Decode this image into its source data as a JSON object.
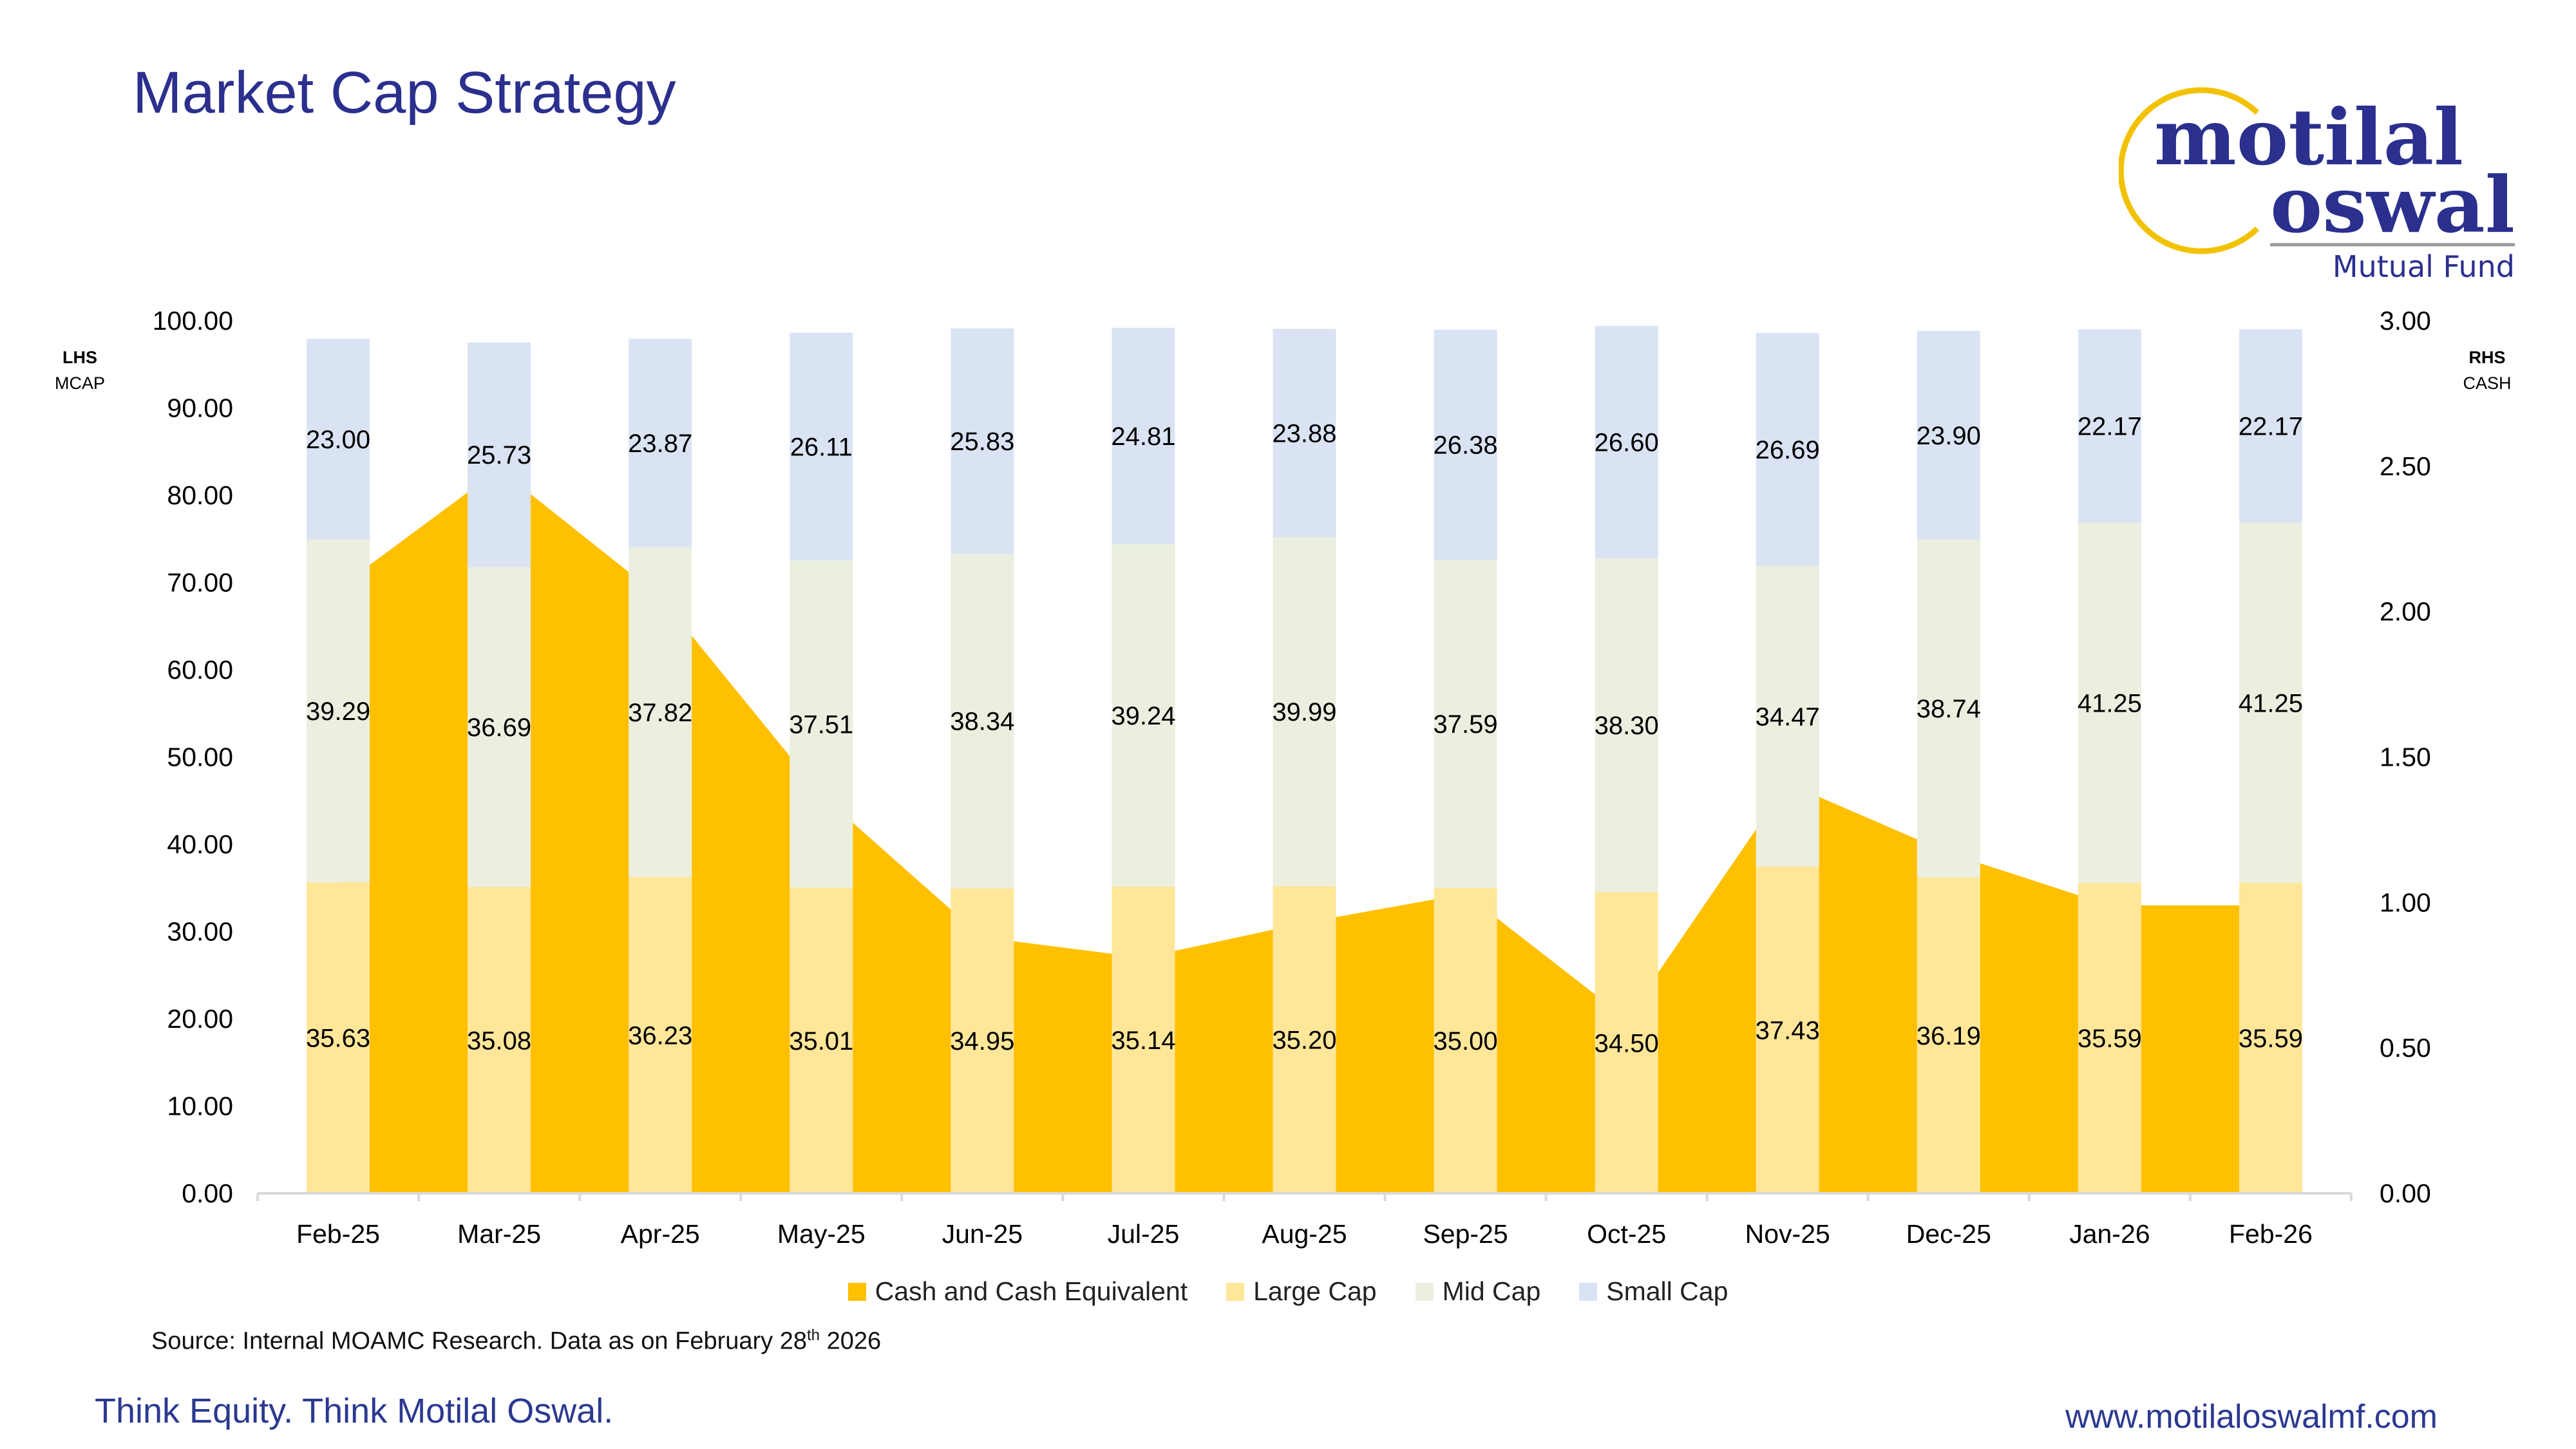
{
  "title": "Market Cap Strategy",
  "logo": {
    "line1": "motilal",
    "line2": "oswal",
    "line3": "Mutual Fund"
  },
  "left_axis": {
    "title": "LHS",
    "subtitle": "MCAP"
  },
  "right_axis": {
    "title": "RHS",
    "subtitle": "CASH"
  },
  "source": {
    "text": "Source: Internal MOAMC Research.  Data as on February 28",
    "sup": "th",
    "tail": "  2026"
  },
  "footer": {
    "tagline": "Think Equity. Think Motilal Oswal.",
    "url": "www.motilaloswalmf.com"
  },
  "chart_data": {
    "type": "bar",
    "stacked": true,
    "categories": [
      "Feb-25",
      "Mar-25",
      "Apr-25",
      "May-25",
      "Jun-25",
      "Jul-25",
      "Aug-25",
      "Sep-25",
      "Oct-25",
      "Nov-25",
      "Dec-25",
      "Jan-26",
      "Feb-26"
    ],
    "y_left": {
      "range": [
        0,
        100
      ],
      "ticks": [
        "0.00",
        "10.00",
        "20.00",
        "30.00",
        "40.00",
        "50.00",
        "60.00",
        "70.00",
        "80.00",
        "90.00",
        "100.00"
      ]
    },
    "y_right": {
      "range": [
        0,
        3
      ],
      "ticks": [
        "0.00",
        "0.50",
        "1.00",
        "1.50",
        "2.00",
        "2.50",
        "3.00"
      ]
    },
    "grid": false,
    "legend_position": "bottom",
    "series": [
      {
        "name": "Cash and Cash Equivalent",
        "type": "area",
        "axis": "right",
        "color": "#FFC000",
        "values": [
          2.08,
          2.49,
          2.05,
          1.37,
          0.88,
          0.81,
          0.93,
          1.03,
          0.6,
          1.41,
          1.17,
          0.99,
          0.99
        ]
      },
      {
        "name": "Large Cap",
        "type": "bar",
        "axis": "left",
        "color": "#FFE699",
        "values": [
          35.63,
          35.08,
          36.23,
          35.01,
          34.95,
          35.14,
          35.2,
          35.0,
          34.5,
          37.43,
          36.19,
          35.59,
          35.59
        ]
      },
      {
        "name": "Mid Cap",
        "type": "bar",
        "axis": "left",
        "color": "#EBEFDF",
        "values": [
          39.29,
          36.69,
          37.82,
          37.51,
          38.34,
          39.24,
          39.99,
          37.59,
          38.3,
          34.47,
          38.74,
          41.25,
          41.25
        ]
      },
      {
        "name": "Small Cap",
        "type": "bar",
        "axis": "left",
        "color": "#DAE3F3",
        "values": [
          23.0,
          25.73,
          23.87,
          26.11,
          25.83,
          24.81,
          23.88,
          26.38,
          26.6,
          26.69,
          23.9,
          22.17,
          22.17
        ]
      }
    ]
  }
}
